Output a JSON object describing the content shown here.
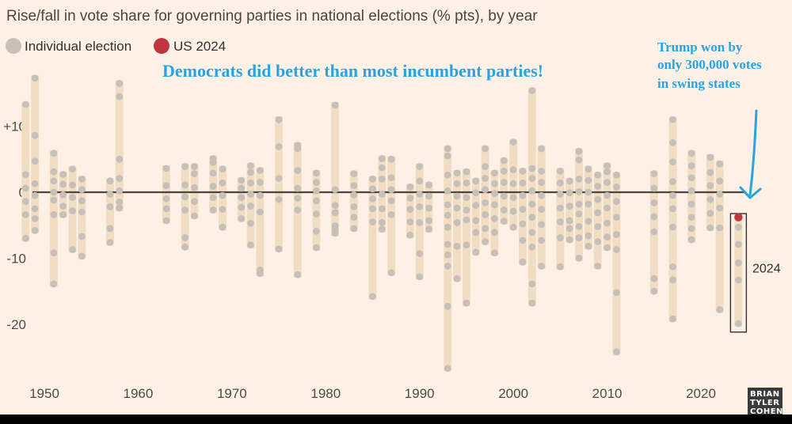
{
  "title": "Rise/fall in vote share for governing parties in national elections (% pts), by year",
  "legend": {
    "individual_label": "Individual election",
    "us_label": "US 2024",
    "individual_color": "#c7bfb8",
    "us_color": "#c0353f"
  },
  "headline": "Democrats did better than most incumbent parties!",
  "note_lines": [
    "Trump won by",
    "only 300,000 votes",
    "in swing states"
  ],
  "watermark_lines": [
    "BRIAN",
    "TYLER",
    "COHEN"
  ],
  "colors": {
    "background": "#fdf1e5",
    "range_bar": "#f1ddc4",
    "dot": "#c7bfb8",
    "zero_line": "#4a4541",
    "annotation": "#29a3e3",
    "us_dot": "#c0353f"
  },
  "chart_data": {
    "type": "scatter",
    "title": "Rise/fall in vote share for governing parties in national elections (% pts), by year",
    "xlabel": "",
    "ylabel": "% pts",
    "xlim": [
      1947,
      2026
    ],
    "ylim": [
      -27.5,
      18.5
    ],
    "x_ticks": [
      1950,
      1960,
      1970,
      1980,
      1990,
      2000,
      2010,
      2020
    ],
    "y_ticks": [
      {
        "value": 10,
        "label": "+10"
      },
      {
        "value": 0,
        "label": "0"
      },
      {
        "value": -10,
        "label": "-10"
      },
      {
        "value": -20,
        "label": "-20"
      }
    ],
    "highlight": {
      "year": 2024,
      "value": -3.8,
      "label": "2024",
      "range": [
        -20,
        -3
      ]
    },
    "years": [
      {
        "year": 1948,
        "values": [
          13.3,
          2.7,
          0.6,
          -1.4,
          -3.4,
          -7.0
        ]
      },
      {
        "year": 1949,
        "values": [
          17.3,
          8.6,
          4.7,
          1.3,
          -0.5,
          -2.5,
          -4.0,
          -5.8
        ]
      },
      {
        "year": 1951,
        "values": [
          5.9,
          3.1,
          1.7,
          0.0,
          -1.2,
          -3.4,
          -9.2,
          -13.9
        ]
      },
      {
        "year": 1952,
        "values": [
          2.7,
          1.2,
          -0.4,
          -2.1,
          -3.4
        ]
      },
      {
        "year": 1953,
        "values": [
          3.5,
          1.1,
          -0.8,
          -2.8,
          -8.7
        ]
      },
      {
        "year": 1954,
        "values": [
          2.0,
          0.4,
          -1.3,
          -3.0,
          -6.7,
          -9.7
        ]
      },
      {
        "year": 1957,
        "values": [
          1.7,
          -0.3,
          -2.2,
          -5.5,
          -7.6
        ]
      },
      {
        "year": 1958,
        "values": [
          16.5,
          14.5,
          5.0,
          2.1,
          0.2,
          -1.5,
          -2.4
        ]
      },
      {
        "year": 1963,
        "values": [
          3.6,
          1.0,
          -1.0,
          -2.5,
          -4.3
        ]
      },
      {
        "year": 1965,
        "values": [
          3.9,
          1.1,
          -0.7,
          -2.7,
          -6.9,
          -8.3
        ]
      },
      {
        "year": 1966,
        "values": [
          3.9,
          2.8,
          0.7,
          -1.4,
          -3.6
        ]
      },
      {
        "year": 1968,
        "values": [
          5.1,
          4.5,
          2.9,
          0.9,
          -0.8,
          -2.7
        ]
      },
      {
        "year": 1969,
        "values": [
          3.5,
          1.4,
          -0.5,
          -2.6,
          -5.3
        ]
      },
      {
        "year": 1971,
        "values": [
          1.8,
          0.6,
          -0.8,
          -2.3,
          -4.0
        ]
      },
      {
        "year": 1972,
        "values": [
          4.0,
          3.0,
          1.4,
          -0.3,
          -2.1,
          -4.7,
          -8.0
        ]
      },
      {
        "year": 1973,
        "values": [
          3.3,
          1.5,
          -0.5,
          -3.0,
          -11.8,
          -12.3
        ]
      },
      {
        "year": 1975,
        "values": [
          11.0,
          6.9,
          2.1,
          -1.1,
          -8.6
        ]
      },
      {
        "year": 1977,
        "values": [
          7.1,
          6.6,
          3.3,
          0.6,
          -0.9,
          -2.7,
          -12.5
        ]
      },
      {
        "year": 1979,
        "values": [
          2.9,
          1.5,
          0.2,
          -1.3,
          -3.3,
          -5.9,
          -8.4
        ]
      },
      {
        "year": 1981,
        "values": [
          13.2,
          0.4,
          -2.0,
          -3.1,
          -5.1,
          -5.6,
          -6.2
        ]
      },
      {
        "year": 1983,
        "values": [
          2.8,
          1.0,
          -0.4,
          -2.2,
          -3.8,
          -5.5
        ]
      },
      {
        "year": 1985,
        "values": [
          2.0,
          0.5,
          -1.0,
          -2.5,
          -4.5,
          -15.8
        ]
      },
      {
        "year": 1986,
        "values": [
          5.1,
          3.7,
          2.0,
          -0.3,
          -2.5,
          -4.6,
          -5.6
        ]
      },
      {
        "year": 1987,
        "values": [
          5.0,
          2.2,
          0.4,
          -1.3,
          -3.4,
          -12.2
        ]
      },
      {
        "year": 1989,
        "values": [
          0.8,
          -0.9,
          -2.6,
          -4.5,
          -6.5
        ]
      },
      {
        "year": 1990,
        "values": [
          3.9,
          1.7,
          -0.3,
          -2.2,
          -4.6,
          -9.3,
          -12.8
        ]
      },
      {
        "year": 1991,
        "values": [
          1.1,
          -0.6,
          -2.4,
          -4.3,
          -5.6
        ]
      },
      {
        "year": 1993,
        "values": [
          6.6,
          5.5,
          2.6,
          0.2,
          -1.9,
          -3.5,
          -5.3,
          -7.9,
          -9.5,
          -11.2,
          -17.3,
          -26.7
        ]
      },
      {
        "year": 1994,
        "values": [
          2.9,
          1.3,
          -0.6,
          -2.4,
          -4.6,
          -8.2,
          -13.1
        ]
      },
      {
        "year": 1995,
        "values": [
          3.1,
          1.4,
          -0.8,
          -2.7,
          -4.2,
          -8.0,
          -16.8
        ]
      },
      {
        "year": 1996,
        "values": [
          1.7,
          -0.1,
          -2.0,
          -4.3,
          -6.1,
          -9.1
        ]
      },
      {
        "year": 1997,
        "values": [
          6.6,
          3.9,
          2.1,
          0.4,
          -1.6,
          -3.4,
          -5.5,
          -7.5
        ]
      },
      {
        "year": 1998,
        "values": [
          2.9,
          1.3,
          -0.2,
          -1.9,
          -4.0,
          -6.1,
          -9.2
        ]
      },
      {
        "year": 1999,
        "values": [
          4.8,
          3.2,
          1.5,
          -0.6,
          -2.7,
          -4.4
        ]
      },
      {
        "year": 2000,
        "values": [
          7.6,
          3.4,
          1.3,
          -0.8,
          -2.9,
          -5.3
        ]
      },
      {
        "year": 2001,
        "values": [
          3.2,
          1.4,
          -0.5,
          -2.6,
          -4.8,
          -7.3,
          -10.6
        ]
      },
      {
        "year": 2002,
        "values": [
          15.4,
          3.6,
          2.1,
          0.2,
          -1.8,
          -3.8,
          -6.1,
          -8.3,
          -13.9,
          -16.8
        ]
      },
      {
        "year": 2003,
        "values": [
          6.6,
          3.2,
          1.5,
          -0.5,
          -2.6,
          -4.9,
          -7.3,
          -11.2
        ]
      },
      {
        "year": 2005,
        "values": [
          3.2,
          1.4,
          -0.3,
          -2.4,
          -4.5,
          -6.9,
          -11.3
        ]
      },
      {
        "year": 2006,
        "values": [
          1.7,
          -0.1,
          -2.1,
          -4.3,
          -5.5,
          -7.2
        ]
      },
      {
        "year": 2007,
        "values": [
          6.2,
          4.9,
          2.0,
          0.1,
          -1.8,
          -3.3,
          -5.2,
          -6.9,
          -10.0
        ]
      },
      {
        "year": 2008,
        "values": [
          3.5,
          1.8,
          0.0,
          -1.8,
          -4.4,
          -6.6,
          -8.2
        ]
      },
      {
        "year": 2009,
        "values": [
          2.6,
          0.9,
          -1.1,
          -3.1,
          -5.2,
          -7.5,
          -11.2
        ]
      },
      {
        "year": 2010,
        "values": [
          4.0,
          3.1,
          1.5,
          -0.5,
          -2.4,
          -4.7,
          -6.8,
          -8.4
        ]
      },
      {
        "year": 2011,
        "values": [
          2.6,
          0.8,
          -1.4,
          -3.8,
          -6.4,
          -8.7,
          -15.2,
          -24.2
        ]
      },
      {
        "year": 2015,
        "values": [
          2.8,
          0.6,
          -1.6,
          -3.7,
          -6.0,
          -13.1,
          -15.0
        ]
      },
      {
        "year": 2017,
        "values": [
          11.0,
          7.5,
          4.6,
          1.6,
          -0.5,
          -2.5,
          -5.3,
          -11.3,
          -13.3,
          -19.2
        ]
      },
      {
        "year": 2019,
        "values": [
          5.9,
          4.0,
          2.2,
          0.2,
          -1.8,
          -3.8,
          -5.5,
          -7.2
        ]
      },
      {
        "year": 2021,
        "values": [
          5.3,
          3.0,
          1.0,
          -1.1,
          -3.2,
          -5.4
        ]
      },
      {
        "year": 2022,
        "values": [
          4.3,
          1.7,
          -0.3,
          -2.4,
          -5.4,
          -17.8
        ]
      },
      {
        "year": 2024,
        "values": [
          -3.8,
          -5.3,
          -7.9,
          -10.7,
          -13.3,
          -19.9
        ]
      }
    ]
  }
}
